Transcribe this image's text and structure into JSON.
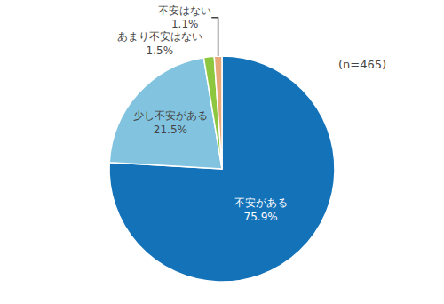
{
  "chart_data": {
    "type": "pie",
    "categories": [
      "不安がある",
      "少し不安がある",
      "あまり不安はない",
      "不安はない"
    ],
    "values": [
      75.9,
      21.5,
      1.5,
      1.1
    ],
    "value_labels": [
      "75.9%",
      "21.5%",
      "1.5%",
      "1.1%"
    ],
    "colors": [
      "#1472b8",
      "#82c4e0",
      "#8dc63f",
      "#e8a97a"
    ],
    "data_labels": true,
    "legend": false,
    "annotations": [
      {
        "text": "(n=465)"
      }
    ]
  }
}
